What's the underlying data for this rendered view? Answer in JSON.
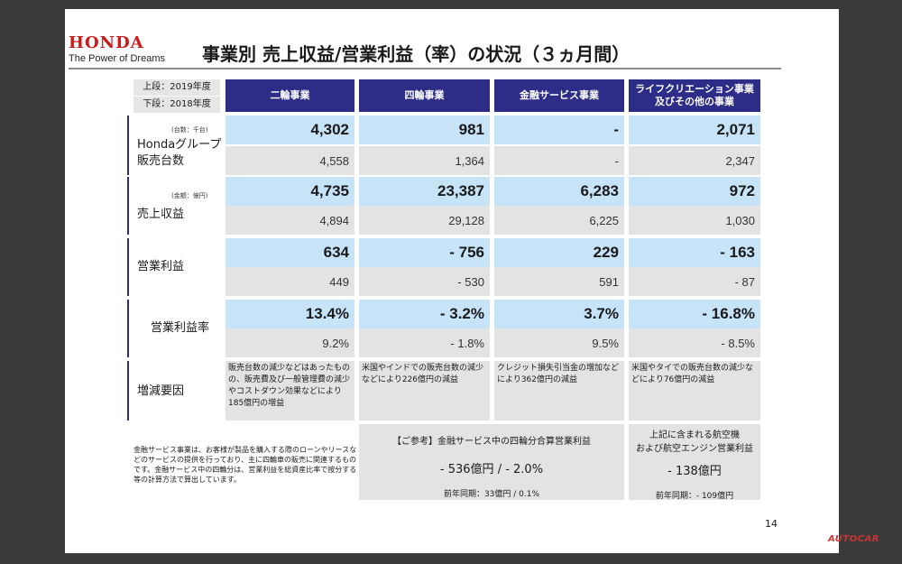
{
  "brand": {
    "name": "HONDA",
    "tagline": "The Power of Dreams"
  },
  "title": "事業別 売上収益/営業利益（率）の状況（３ヵ月間）",
  "legend": {
    "upper": "上段：2019年度",
    "lower": "下段：2018年度"
  },
  "columns": [
    "二輪事業",
    "四輪事業",
    "金融サービス事業",
    "ライフクリエーション事業\n及びその他の事業"
  ],
  "units": {
    "sales_units": "(台数：千台)",
    "amount": "(金額：億円)"
  },
  "rows": {
    "units": {
      "label_line1": "Hondaグループ",
      "label_line2": "販売台数",
      "current": [
        "4,302",
        "981",
        "-",
        "2,071"
      ],
      "previous": [
        "4,558",
        "1,364",
        "-",
        "2,347"
      ]
    },
    "revenue": {
      "label": "売上収益",
      "current": [
        "4,735",
        "23,387",
        "6,283",
        "972"
      ],
      "previous": [
        "4,894",
        "29,128",
        "6,225",
        "1,030"
      ]
    },
    "op_income": {
      "label": "営業利益",
      "current": [
        "634",
        "- 756",
        "229",
        "- 163"
      ],
      "previous": [
        "449",
        "- 530",
        "591",
        "- 87"
      ]
    },
    "op_margin": {
      "label": "営業利益率",
      "current": [
        "13.4%",
        "- 3.2%",
        "3.7%",
        "- 16.8%"
      ],
      "previous": [
        "9.2%",
        "- 1.8%",
        "9.5%",
        "- 8.5%"
      ]
    }
  },
  "factors": {
    "label": "増減要因",
    "items": [
      "販売台数の減少などはあったものの、販売費及び一般管理費の減少やコストダウン効果などにより185億円の増益",
      "米国やインドでの販売台数の減少などにより226億円の減益",
      "クレジット損失引当金の増加などにより362億円の減益",
      "米国やタイでの販売台数の減少などにより76億円の減益"
    ]
  },
  "note": "金融サービス事業は、お客様が製品を購入する際のローンやリースなどのサービスの提供を行っており、主に四輪車の販売に関連するものです。金融サービス中の四輪分は、営業利益を総資産比率で按分する等の計算方法で算出しています。",
  "reference": {
    "title": "【ご参考】金融サービス中の四輪分合算営業利益",
    "value": "- 536億円 / - 2.0%",
    "sub": "前年同期：33億円 / 0.1%"
  },
  "aircraft": {
    "title_line1": "上記に含まれる航空機",
    "title_line2": "および航空エンジン営業利益",
    "value": "- 138億円",
    "sub": "前年同期：- 109億円"
  },
  "page_number": "14",
  "watermark": "AUTOCAR"
}
